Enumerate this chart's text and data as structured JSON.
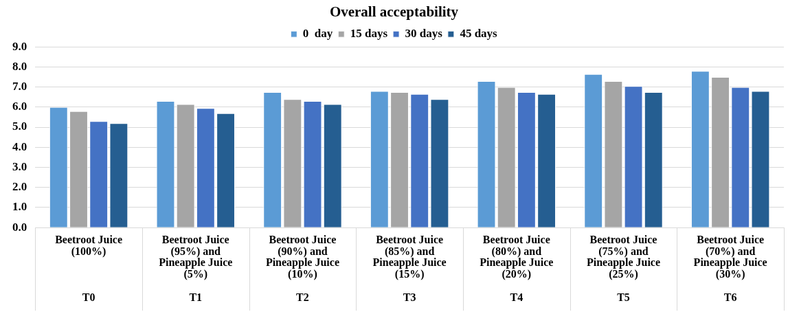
{
  "chart_data": {
    "type": "bar",
    "title": "Overall acceptability",
    "categories": [
      "Beetroot Juice\n(100%)\n\n\n\nT0",
      "Beetroot Juice\n(95%) and\nPineapple Juice\n(5%)\n\nT1",
      "Beetroot Juice\n(90%) and\nPineapple Juice\n(10%)\n\nT2",
      "Beetroot Juice\n(85%) and\nPineapple Juice\n(15%)\n\nT3",
      "Beetroot Juice\n(80%) and\nPineapple Juice\n(20%)\n\nT4",
      "Beetroot Juice\n(75%) and\nPineapple Juice\n(25%)\n\nT5",
      "Beetroot Juice\n(70%) and\nPineapple Juice\n(30%)\n\nT6"
    ],
    "series": [
      {
        "name": "0  day",
        "color": "#5b9bd5",
        "values": [
          6.0,
          6.3,
          6.75,
          6.8,
          7.3,
          7.65,
          7.8
        ]
      },
      {
        "name": "15 days",
        "color": "#a5a5a5",
        "values": [
          5.8,
          6.15,
          6.4,
          6.75,
          7.0,
          7.3,
          7.5
        ]
      },
      {
        "name": "30 days",
        "color": "#4472c4",
        "values": [
          5.3,
          5.95,
          6.3,
          6.65,
          6.75,
          7.05,
          7.0
        ]
      },
      {
        "name": "45 days",
        "color": "#255e91",
        "values": [
          5.2,
          5.7,
          6.15,
          6.4,
          6.65,
          6.75,
          6.8
        ]
      }
    ],
    "ylim": [
      0,
      9
    ],
    "yticks": [
      {
        "value": 0,
        "label": "0.0"
      },
      {
        "value": 1,
        "label": "1.0"
      },
      {
        "value": 2,
        "label": "2.0"
      },
      {
        "value": 3,
        "label": "3.0"
      },
      {
        "value": 4,
        "label": "4.0"
      },
      {
        "value": 5,
        "label": "5.0"
      },
      {
        "value": 6,
        "label": "6.0"
      },
      {
        "value": 7,
        "label": "7.0"
      },
      {
        "value": 8,
        "label": "8.0"
      },
      {
        "value": 9,
        "label": "9.0"
      }
    ],
    "grid": "y",
    "legend": "top"
  }
}
